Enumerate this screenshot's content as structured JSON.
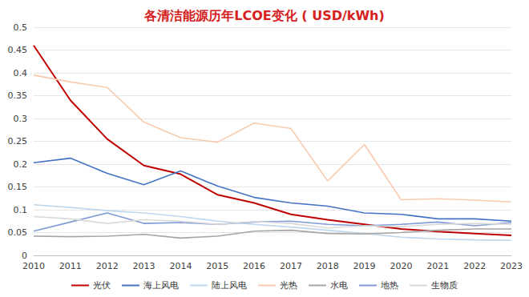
{
  "chart_data": {
    "type": "line",
    "title": "各清洁能源历年LCOE变化 ( USD/kWh)",
    "categories": [
      "2010",
      "2011",
      "2012",
      "2013",
      "2014",
      "2015",
      "2016",
      "2017",
      "2018",
      "2019",
      "2020",
      "2021",
      "2022",
      "2023"
    ],
    "series": [
      {
        "name": "光伏",
        "color": "#c00000",
        "values": [
          0.46,
          0.34,
          0.255,
          0.197,
          0.178,
          0.133,
          0.115,
          0.09,
          0.078,
          0.068,
          0.058,
          0.052,
          0.048,
          0.044
        ]
      },
      {
        "name": "海上风电",
        "color": "#4472c4",
        "values": [
          0.203,
          0.213,
          0.18,
          0.155,
          0.185,
          0.152,
          0.127,
          0.115,
          0.108,
          0.093,
          0.09,
          0.08,
          0.08,
          0.075
        ]
      },
      {
        "name": "陆上风电",
        "color": "#bdd7ee",
        "values": [
          0.111,
          0.105,
          0.098,
          0.093,
          0.085,
          0.075,
          0.068,
          0.062,
          0.055,
          0.048,
          0.04,
          0.036,
          0.034,
          0.033
        ]
      },
      {
        "name": "光热",
        "color": "#f8cbad",
        "values": [
          0.395,
          0.38,
          0.368,
          0.292,
          0.258,
          0.248,
          0.29,
          0.278,
          0.163,
          0.243,
          0.122,
          0.124,
          0.121,
          0.117
        ]
      },
      {
        "name": "水电",
        "color": "#a5a5a5",
        "values": [
          0.042,
          0.041,
          0.042,
          0.046,
          0.038,
          0.042,
          0.053,
          0.055,
          0.048,
          0.047,
          0.05,
          0.055,
          0.058,
          0.058
        ]
      },
      {
        "name": "地热",
        "color": "#7f9ad6",
        "values": [
          0.053,
          0.073,
          0.093,
          0.07,
          0.072,
          0.068,
          0.073,
          0.075,
          0.068,
          0.065,
          0.068,
          0.073,
          0.065,
          0.072
        ]
      },
      {
        "name": "生物质",
        "color": "#d9d9d9",
        "values": [
          0.085,
          0.08,
          0.07,
          0.078,
          0.075,
          0.068,
          0.074,
          0.07,
          0.06,
          0.065,
          0.063,
          0.068,
          0.07,
          0.068
        ]
      }
    ],
    "ylim": [
      0,
      0.5
    ],
    "yticks": [
      0,
      0.05,
      0.1,
      0.15,
      0.2,
      0.25,
      0.3,
      0.35,
      0.4,
      0.45,
      0.5
    ],
    "grid": true,
    "legend": "bottom"
  }
}
